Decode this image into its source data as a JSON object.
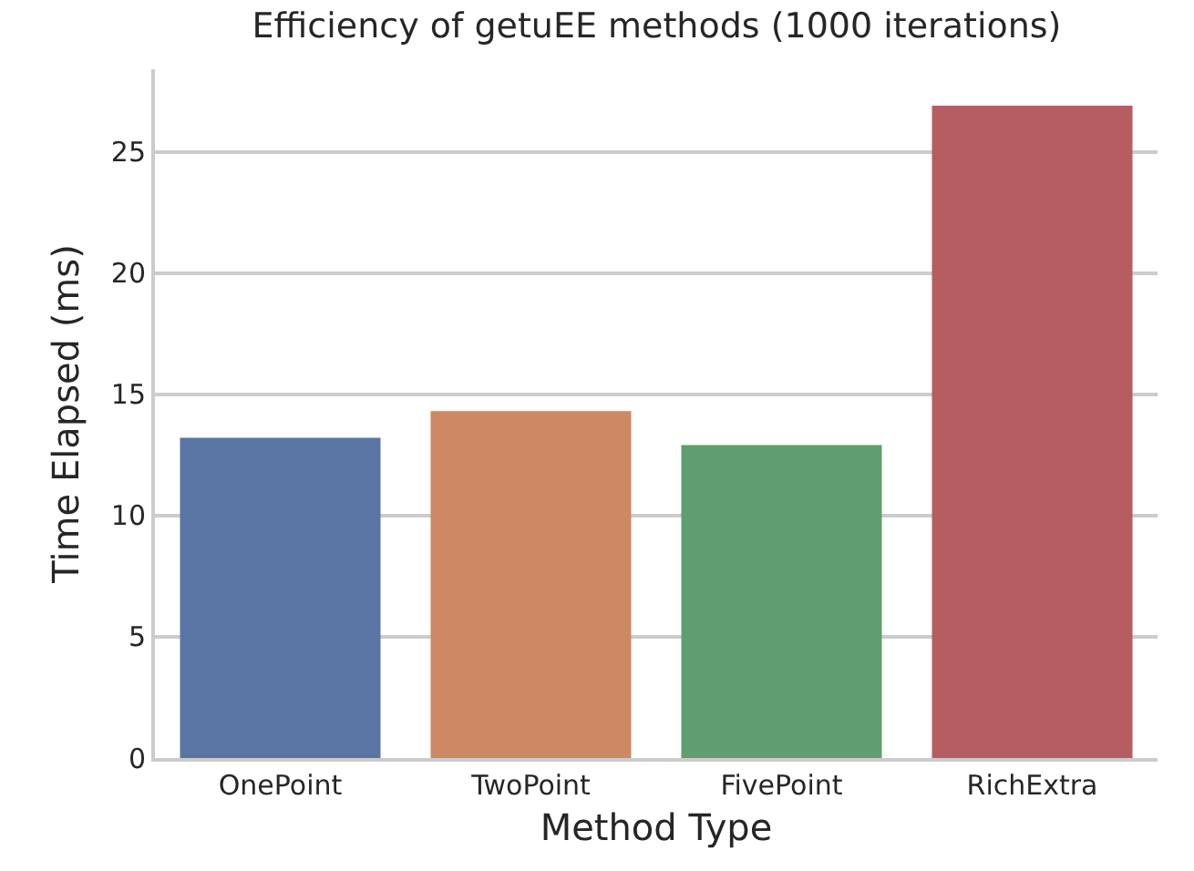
{
  "chart_data": {
    "type": "bar",
    "title": "Efficiency of getuEE methods (1000 iterations)",
    "xlabel": "Method Type",
    "ylabel": "Time Elapsed (ms)",
    "categories": [
      "OnePoint",
      "TwoPoint",
      "FivePoint",
      "RichExtra"
    ],
    "values": [
      13.2,
      14.3,
      12.9,
      26.9
    ],
    "colors": [
      "#5875a4",
      "#cc8963",
      "#5f9e6e",
      "#b55d60"
    ],
    "ylim": [
      0,
      28.4
    ],
    "yticks": [
      0,
      5,
      10,
      15,
      20,
      25
    ],
    "grid": "y",
    "legend": false
  }
}
